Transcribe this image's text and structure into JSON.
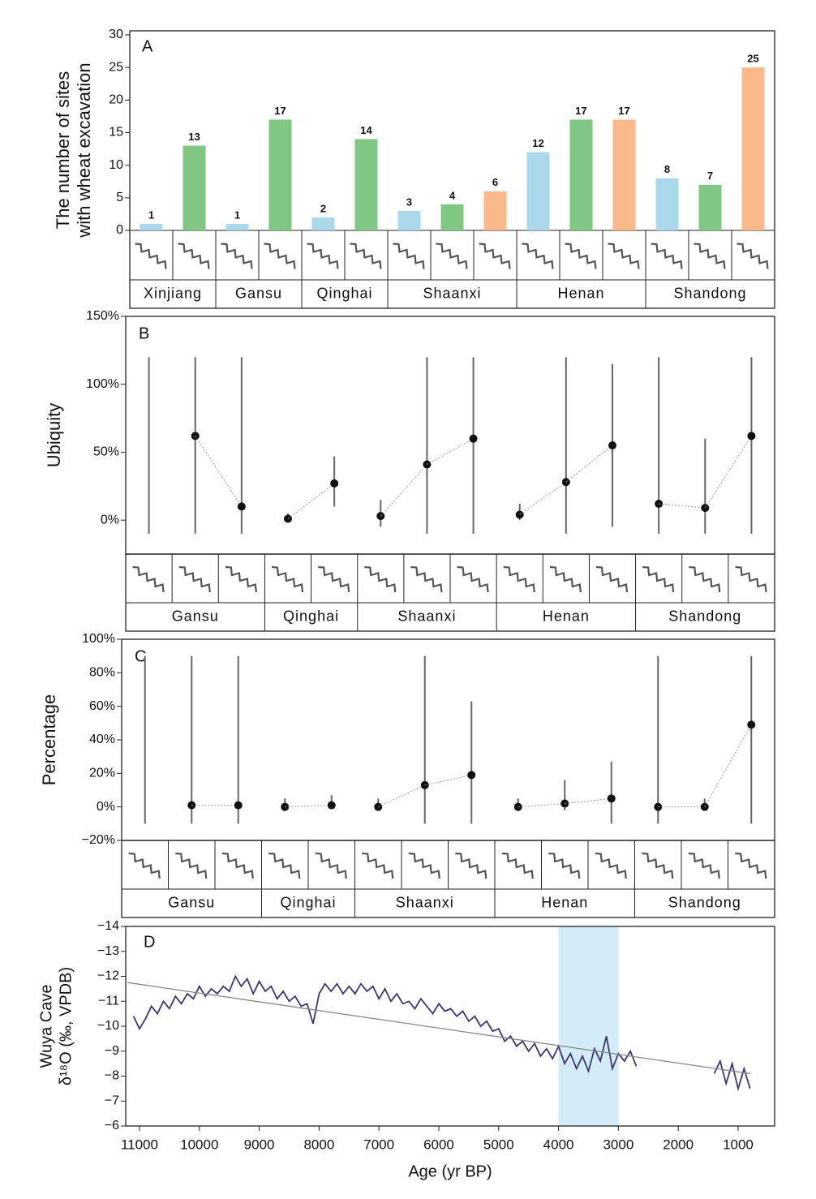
{
  "chart_data": [
    {
      "type": "bar",
      "panel": "A",
      "ylabel": [
        "The number of sites",
        "with wheat excavation"
      ],
      "categories": [
        "Xinjiang",
        "Gansu",
        "Qinghai",
        "Shaanxi",
        "Henan",
        "Shandong"
      ],
      "series": [
        {
          "color": "#a9d9ea",
          "values": [
            1,
            1,
            2,
            3,
            12,
            8
          ]
        },
        {
          "color": "#7fc783",
          "values": [
            13,
            17,
            14,
            4,
            17,
            7
          ]
        },
        {
          "color": "#f9b98a",
          "values": [
            null,
            null,
            null,
            6,
            17,
            25
          ]
        }
      ],
      "ylim": [
        0,
        30
      ],
      "yticks": [
        0,
        5,
        10,
        15,
        20,
        25,
        30
      ]
    },
    {
      "type": "violin",
      "panel": "B",
      "ylabel": "Ubiquity",
      "dot_color": "#111",
      "categories": [
        "Gansu",
        "Qinghai",
        "Shaanxi",
        "Henan",
        "Shandong"
      ],
      "series": [
        {
          "color": "#666",
          "values": [
            null,
            1,
            3,
            4,
            12
          ],
          "whisker_low": [
            -10,
            0,
            -5,
            0,
            -10
          ],
          "whisker_high": [
            120,
            5,
            15,
            12,
            120
          ]
        },
        {
          "color": "#666",
          "values": [
            62,
            27,
            41,
            28,
            9
          ],
          "whisker_low": [
            -10,
            10,
            -10,
            -10,
            -10
          ],
          "whisker_high": [
            120,
            47,
            120,
            120,
            60
          ]
        },
        {
          "color": "#666",
          "values": [
            10,
            null,
            60,
            55,
            62
          ],
          "whisker_low": [
            -10,
            null,
            -10,
            -5,
            -10
          ],
          "whisker_high": [
            120,
            null,
            120,
            115,
            120
          ]
        }
      ],
      "ylim": [
        -25,
        150
      ],
      "yticks": [
        {
          "value": 0,
          "label": "0%"
        },
        {
          "value": 50,
          "label": "50%"
        },
        {
          "value": 100,
          "label": "100%"
        },
        {
          "value": 150,
          "label": "150%"
        }
      ]
    },
    {
      "type": "violin",
      "panel": "C",
      "ylabel": "Percentage",
      "dot_color": "#111",
      "categories": [
        "Gansu",
        "Qinghai",
        "Shaanxi",
        "Henan",
        "Shandong"
      ],
      "series": [
        {
          "color": "#666",
          "values": [
            null,
            0,
            0,
            0,
            0
          ],
          "whisker_low": [
            -10,
            -1,
            -1,
            -1,
            -10
          ],
          "whisker_high": [
            90,
            5,
            5,
            5,
            90
          ]
        },
        {
          "color": "#666",
          "values": [
            1,
            1,
            13,
            2,
            0
          ],
          "whisker_low": [
            -10,
            0,
            -10,
            -2,
            -2
          ],
          "whisker_high": [
            90,
            7,
            90,
            16,
            5
          ]
        },
        {
          "color": "#666",
          "values": [
            1,
            null,
            19,
            5,
            49
          ],
          "whisker_low": [
            -10,
            null,
            -10,
            -10,
            -10
          ],
          "whisker_high": [
            90,
            null,
            63,
            27,
            90
          ]
        }
      ],
      "ylim": [
        -20,
        100
      ],
      "yticks": [
        {
          "value": -20,
          "label": "−20%"
        },
        {
          "value": 0,
          "label": "0%"
        },
        {
          "value": 20,
          "label": "20%"
        },
        {
          "value": 40,
          "label": "40%"
        },
        {
          "value": 60,
          "label": "60%"
        },
        {
          "value": 80,
          "label": "80%"
        },
        {
          "value": 100,
          "label": "100%"
        }
      ]
    },
    {
      "type": "line",
      "panel": "D",
      "ylabel": [
        "Wuya Cave",
        "δ¹⁸O (‰, VPDB)"
      ],
      "xlabel": "Age (yr BP)",
      "x": [
        11100,
        11000,
        10900,
        10800,
        10700,
        10600,
        10500,
        10400,
        10300,
        10200,
        10100,
        10000,
        9900,
        9800,
        9700,
        9600,
        9500,
        9400,
        9300,
        9200,
        9100,
        9000,
        8900,
        8800,
        8700,
        8600,
        8500,
        8400,
        8300,
        8200,
        8100,
        8000,
        7900,
        7800,
        7700,
        7600,
        7500,
        7400,
        7300,
        7200,
        7100,
        7000,
        6900,
        6800,
        6700,
        6600,
        6500,
        6400,
        6300,
        6200,
        6100,
        6000,
        5900,
        5800,
        5700,
        5600,
        5500,
        5400,
        5300,
        5200,
        5100,
        5000,
        4900,
        4800,
        4700,
        4600,
        4500,
        4400,
        4300,
        4200,
        4100,
        4000,
        3900,
        3800,
        3700,
        3600,
        3500,
        3400,
        3300,
        3200,
        3100,
        3000,
        2900,
        2800,
        2700,
        2000,
        1400,
        1300,
        1200,
        1100,
        1000,
        900,
        800
      ],
      "series": [
        {
          "color": "#3d3670",
          "values": [
            -10.4,
            -9.9,
            -10.3,
            -10.8,
            -10.5,
            -11.0,
            -10.7,
            -11.2,
            -10.9,
            -11.3,
            -11.1,
            -11.6,
            -11.2,
            -11.5,
            -11.3,
            -11.6,
            -11.4,
            -12.0,
            -11.6,
            -11.9,
            -11.3,
            -11.8,
            -11.4,
            -11.6,
            -11.1,
            -11.4,
            -11.0,
            -11.2,
            -10.8,
            -10.9,
            -10.1,
            -11.3,
            -11.7,
            -11.4,
            -11.7,
            -11.3,
            -11.6,
            -11.3,
            -11.7,
            -11.4,
            -11.6,
            -11.1,
            -11.5,
            -11.0,
            -11.3,
            -10.9,
            -11.0,
            -10.7,
            -11.1,
            -10.8,
            -10.5,
            -10.9,
            -10.6,
            -10.7,
            -10.4,
            -10.6,
            -10.2,
            -10.4,
            -10.0,
            -10.2,
            -9.8,
            -9.9,
            -9.4,
            -9.6,
            -9.2,
            -9.4,
            -9.0,
            -9.3,
            -8.8,
            -9.1,
            -8.7,
            -9.2,
            -8.5,
            -8.9,
            -8.3,
            -8.8,
            -8.2,
            -9.1,
            -8.6,
            -9.6,
            -8.3,
            -8.9,
            -8.6,
            -9.0,
            -8.4,
            null,
            -8.1,
            -8.6,
            -7.7,
            -8.5,
            -7.5,
            -8.3,
            -7.5
          ]
        }
      ],
      "trend": {
        "color": "#888",
        "x": [
          11200,
          800
        ],
        "values": [
          -11.75,
          -8.1
        ]
      },
      "shade": {
        "color": "#d3ecf8",
        "x": [
          4000,
          3000
        ]
      },
      "xlim": [
        11230,
        390
      ],
      "xticks": [
        11000,
        10000,
        9000,
        8000,
        7000,
        6000,
        5000,
        4000,
        3000,
        2000,
        1000
      ],
      "ylim": [
        -6,
        -14
      ],
      "yticks": [
        {
          "value": -14,
          "label": "−14"
        },
        {
          "value": -13,
          "label": "−13"
        },
        {
          "value": -12,
          "label": "−12"
        },
        {
          "value": -11,
          "label": "−11"
        },
        {
          "value": -10,
          "label": "−10"
        },
        {
          "value": -9,
          "label": "−9"
        },
        {
          "value": -8,
          "label": "−8"
        },
        {
          "value": -7,
          "label": "−7"
        },
        {
          "value": -6,
          "label": "−6"
        }
      ]
    }
  ]
}
